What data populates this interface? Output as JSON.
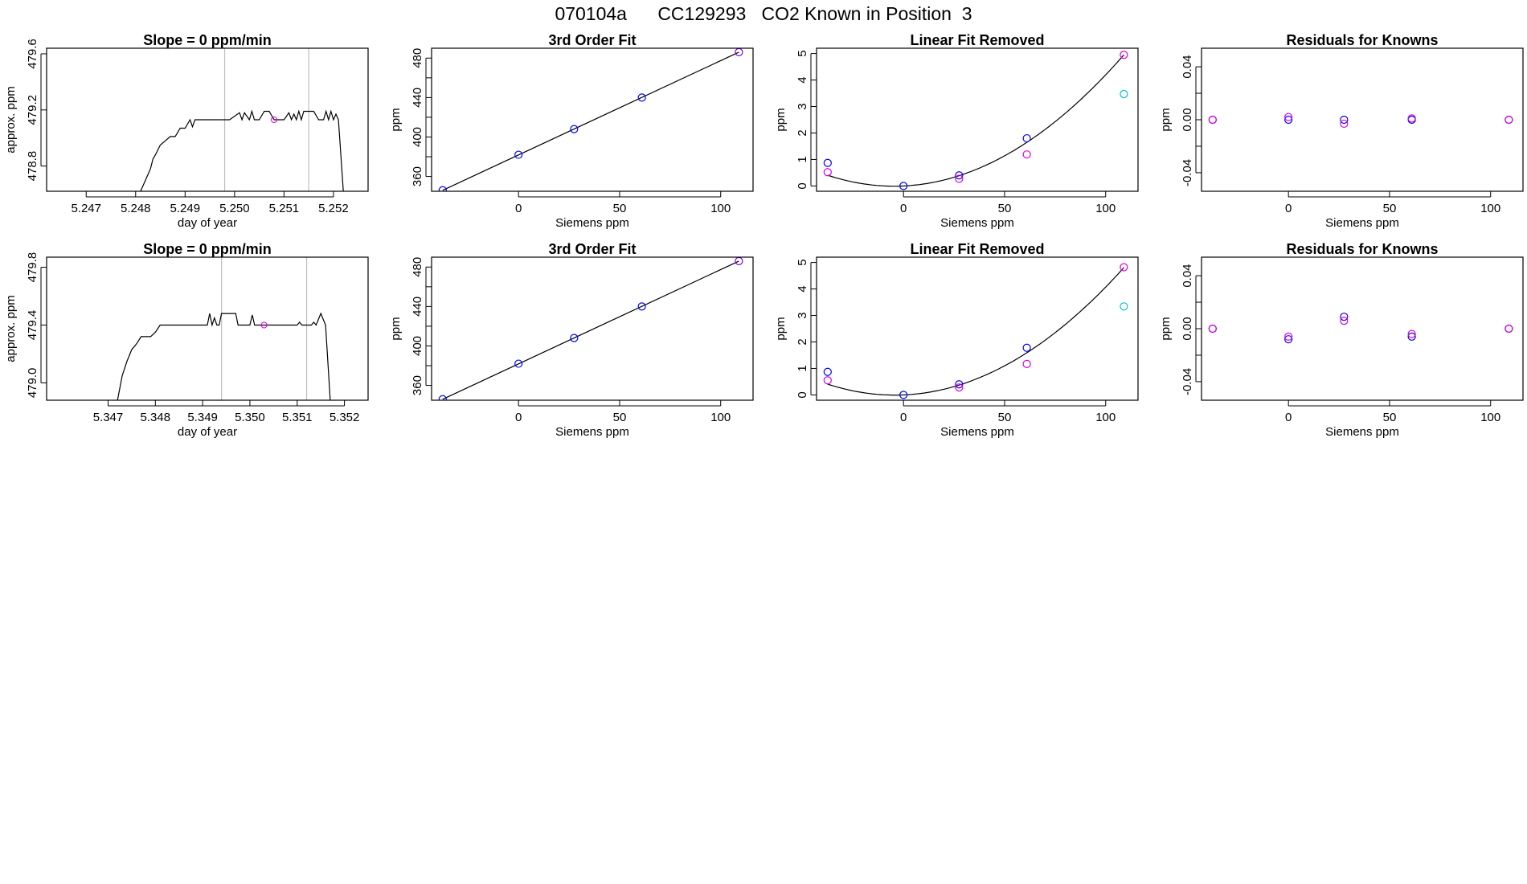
{
  "page_title": "070104a      CC129293   CO2 Known in Position  3",
  "colors": {
    "blue": "#0000FF",
    "magenta": "#DD00DD",
    "cyan": "#00BFD8",
    "purple": "#7A00DD",
    "line": "#000000",
    "vline": "#BEBEBE"
  },
  "chart_data": [
    {
      "type": "line",
      "title": "Slope =  0  ppm/min",
      "xlabel": "day of year",
      "ylabel": "approx. ppm",
      "xlim": [
        5.2462,
        5.2527
      ],
      "ylim": [
        478.62,
        479.64
      ],
      "xticks": [
        5.247,
        5.248,
        5.249,
        5.25,
        5.251,
        5.252
      ],
      "xtick_labels": [
        "5.247",
        "5.248",
        "5.249",
        "5.250",
        "5.251",
        "5.252"
      ],
      "yticks": [
        478.8,
        479.2,
        479.6
      ],
      "ytick_labels": [
        "478.8",
        "479.2",
        "479.6"
      ],
      "vlines": [
        5.2498,
        5.2515
      ],
      "series": [
        {
          "x": [
            5.2481,
            5.2482,
            5.2483,
            5.24835,
            5.2484,
            5.2485,
            5.2486,
            5.2487,
            5.2488,
            5.2489,
            5.249,
            5.2491,
            5.24915,
            5.2492,
            5.24925,
            5.2493,
            5.2495,
            5.2497,
            5.2499,
            5.2501,
            5.25015,
            5.2502,
            5.2503,
            5.25035,
            5.2504,
            5.2505,
            5.2506,
            5.2507,
            5.2508,
            5.2509,
            5.251,
            5.2511,
            5.25115,
            5.2512,
            5.25125,
            5.2513,
            5.25135,
            5.2514,
            5.2515,
            5.2516,
            5.2517,
            5.2518,
            5.25185,
            5.2519,
            5.25195,
            5.252,
            5.25205,
            5.2521,
            5.2522
          ],
          "y": [
            478.62,
            478.7,
            478.78,
            478.85,
            478.88,
            478.95,
            478.98,
            479.01,
            479.01,
            479.07,
            479.07,
            479.13,
            479.08,
            479.13,
            479.13,
            479.13,
            479.13,
            479.13,
            479.13,
            479.18,
            479.13,
            479.18,
            479.13,
            479.19,
            479.13,
            479.13,
            479.19,
            479.19,
            479.13,
            479.13,
            479.13,
            479.18,
            479.13,
            479.17,
            479.13,
            479.19,
            479.13,
            479.19,
            479.19,
            479.19,
            479.13,
            479.13,
            479.19,
            479.13,
            479.19,
            479.13,
            479.17,
            479.13,
            478.62
          ]
        }
      ],
      "point": {
        "x": 5.2508,
        "y": 479.13,
        "color": "magenta"
      }
    },
    {
      "type": "line",
      "title": "3rd Order Fit",
      "xlabel": "Siemens ppm",
      "ylabel": "ppm",
      "xlim": [
        -43,
        116
      ],
      "ylim": [
        345,
        490
      ],
      "xticks": [
        0,
        50,
        100
      ],
      "xtick_labels": [
        "0",
        "50",
        "100"
      ],
      "yticks": [
        360,
        400,
        440,
        480
      ],
      "ytick_labels": [
        "360",
        "400",
        "440",
        "480"
      ],
      "y_minor_ticks": [
        380,
        420,
        460
      ],
      "fit_line": {
        "x": [
          -37.5,
          109
        ],
        "y": [
          346,
          486
        ]
      },
      "points": [
        {
          "x": -37.5,
          "y": 346,
          "color": "blue"
        },
        {
          "x": 0,
          "y": 382,
          "color": "blue"
        },
        {
          "x": 27.5,
          "y": 408,
          "color": "blue"
        },
        {
          "x": 61,
          "y": 440,
          "color": "blue"
        },
        {
          "x": 109,
          "y": 486,
          "color": "purple"
        }
      ]
    },
    {
      "type": "scatter",
      "title": "Linear Fit Removed",
      "xlabel": "Siemens ppm",
      "ylabel": "ppm",
      "xlim": [
        -43,
        116
      ],
      "ylim": [
        -0.2,
        5.2
      ],
      "xticks": [
        0,
        50,
        100
      ],
      "xtick_labels": [
        "0",
        "50",
        "100"
      ],
      "yticks": [
        0,
        1,
        2,
        3,
        4,
        5
      ],
      "ytick_labels": [
        "0",
        "1",
        "2",
        "3",
        "4",
        "5"
      ],
      "curve": {
        "a": 0.000384,
        "b": 0.00355,
        "from": -37.5,
        "to": 109
      },
      "points": [
        {
          "x": -37.5,
          "y": 0.87,
          "color": "blue"
        },
        {
          "x": 0,
          "y": 0.0,
          "color": "blue"
        },
        {
          "x": 27.5,
          "y": 0.4,
          "color": "blue"
        },
        {
          "x": 61,
          "y": 1.8,
          "color": "blue"
        },
        {
          "x": 109,
          "y": 4.95,
          "color": "magenta"
        },
        {
          "x": -37.5,
          "y": 0.52,
          "color": "magenta"
        },
        {
          "x": 27.5,
          "y": 0.27,
          "color": "magenta"
        },
        {
          "x": 61,
          "y": 1.19,
          "color": "magenta"
        },
        {
          "x": 109,
          "y": 3.47,
          "color": "cyan"
        }
      ]
    },
    {
      "type": "scatter",
      "title": "Residuals for Knowns",
      "xlabel": "Siemens ppm",
      "ylabel": "ppm",
      "xlim": [
        -43,
        116
      ],
      "ylim": [
        -0.054,
        0.054
      ],
      "xticks": [
        0,
        50,
        100
      ],
      "xtick_labels": [
        "0",
        "50",
        "100"
      ],
      "yticks": [
        -0.04,
        0.0,
        0.04
      ],
      "ytick_labels": [
        "-0.04",
        "0.00",
        "0.04"
      ],
      "y_minor_ticks": [
        -0.02,
        0.02
      ],
      "points": [
        {
          "x": -37.5,
          "y": 0.0,
          "color": "blue"
        },
        {
          "x": -37.5,
          "y": 0.0,
          "color": "magenta"
        },
        {
          "x": 0,
          "y": 0.0,
          "color": "blue"
        },
        {
          "x": 0,
          "y": 0.002,
          "color": "magenta"
        },
        {
          "x": 27.5,
          "y": 0.0,
          "color": "blue"
        },
        {
          "x": 27.5,
          "y": -0.003,
          "color": "magenta"
        },
        {
          "x": 61,
          "y": 0.0,
          "color": "blue"
        },
        {
          "x": 61,
          "y": 0.001,
          "color": "magenta"
        },
        {
          "x": 109,
          "y": 0.0,
          "color": "blue"
        },
        {
          "x": 109,
          "y": 0.0,
          "color": "magenta"
        }
      ]
    },
    {
      "type": "line",
      "title": "Slope =  0  ppm/min",
      "xlabel": "day of year",
      "ylabel": "approx. ppm",
      "xlim": [
        5.3457,
        5.3525
      ],
      "ylim": [
        478.88,
        479.87
      ],
      "xticks": [
        5.347,
        5.348,
        5.349,
        5.35,
        5.351,
        5.352
      ],
      "xtick_labels": [
        "5.347",
        "5.348",
        "5.349",
        "5.350",
        "5.351",
        "5.352"
      ],
      "yticks": [
        479.0,
        479.4,
        479.8
      ],
      "ytick_labels": [
        "479.0",
        "479.4",
        "479.8"
      ],
      "vlines": [
        5.3494,
        5.3512
      ],
      "series": [
        {
          "x": [
            5.3472,
            5.3473,
            5.3474,
            5.3475,
            5.3476,
            5.3477,
            5.3478,
            5.3479,
            5.348,
            5.3481,
            5.3482,
            5.3483,
            5.3485,
            5.3487,
            5.3489,
            5.3491,
            5.34915,
            5.3492,
            5.34925,
            5.3493,
            5.34935,
            5.3494,
            5.3495,
            5.3496,
            5.3497,
            5.34975,
            5.3498,
            5.3499,
            5.35,
            5.35005,
            5.3501,
            5.3503,
            5.3505,
            5.3507,
            5.3509,
            5.351,
            5.35105,
            5.3511,
            5.3512,
            5.3513,
            5.35135,
            5.3514,
            5.3515,
            5.3516,
            5.3517
          ],
          "y": [
            478.88,
            479.05,
            479.15,
            479.23,
            479.27,
            479.32,
            479.32,
            479.32,
            479.35,
            479.4,
            479.4,
            479.4,
            479.4,
            479.4,
            479.4,
            479.4,
            479.48,
            479.4,
            479.45,
            479.4,
            479.4,
            479.48,
            479.48,
            479.48,
            479.48,
            479.4,
            479.4,
            479.4,
            479.4,
            479.47,
            479.4,
            479.4,
            479.4,
            479.4,
            479.4,
            479.4,
            479.42,
            479.4,
            479.4,
            479.4,
            479.42,
            479.4,
            479.48,
            479.4,
            478.88
          ]
        }
      ],
      "point": {
        "x": 5.3503,
        "y": 479.4,
        "color": "magenta"
      }
    },
    {
      "type": "line",
      "title": "3rd Order Fit",
      "xlabel": "Siemens ppm",
      "ylabel": "ppm",
      "xlim": [
        -43,
        116
      ],
      "ylim": [
        345,
        490
      ],
      "xticks": [
        0,
        50,
        100
      ],
      "xtick_labels": [
        "0",
        "50",
        "100"
      ],
      "yticks": [
        360,
        400,
        440,
        480
      ],
      "ytick_labels": [
        "360",
        "400",
        "440",
        "480"
      ],
      "y_minor_ticks": [
        380,
        420,
        460
      ],
      "fit_line": {
        "x": [
          -37.5,
          109
        ],
        "y": [
          346,
          486
        ]
      },
      "points": [
        {
          "x": -37.5,
          "y": 346,
          "color": "blue"
        },
        {
          "x": 0,
          "y": 382,
          "color": "blue"
        },
        {
          "x": 27.5,
          "y": 408,
          "color": "blue"
        },
        {
          "x": 61,
          "y": 440,
          "color": "blue"
        },
        {
          "x": 109,
          "y": 486,
          "color": "purple"
        }
      ]
    },
    {
      "type": "scatter",
      "title": "Linear Fit Removed",
      "xlabel": "Siemens ppm",
      "ylabel": "ppm",
      "xlim": [
        -43,
        116
      ],
      "ylim": [
        -0.2,
        5.2
      ],
      "xticks": [
        0,
        50,
        100
      ],
      "xtick_labels": [
        "0",
        "50",
        "100"
      ],
      "yticks": [
        0,
        1,
        2,
        3,
        4,
        5
      ],
      "ytick_labels": [
        "0",
        "1",
        "2",
        "3",
        "4",
        "5"
      ],
      "curve": {
        "a": 0.000375,
        "b": 0.0032,
        "from": -37.5,
        "to": 109
      },
      "points": [
        {
          "x": -37.5,
          "y": 0.87,
          "color": "blue"
        },
        {
          "x": 0,
          "y": 0.0,
          "color": "blue"
        },
        {
          "x": 27.5,
          "y": 0.4,
          "color": "blue"
        },
        {
          "x": 61,
          "y": 1.78,
          "color": "blue"
        },
        {
          "x": 109,
          "y": 4.82,
          "color": "magenta"
        },
        {
          "x": -37.5,
          "y": 0.55,
          "color": "magenta"
        },
        {
          "x": 27.5,
          "y": 0.28,
          "color": "magenta"
        },
        {
          "x": 61,
          "y": 1.17,
          "color": "magenta"
        },
        {
          "x": 109,
          "y": 3.34,
          "color": "cyan"
        }
      ]
    },
    {
      "type": "scatter",
      "title": "Residuals for Knowns",
      "xlabel": "Siemens ppm",
      "ylabel": "ppm",
      "xlim": [
        -43,
        116
      ],
      "ylim": [
        -0.054,
        0.054
      ],
      "xticks": [
        0,
        50,
        100
      ],
      "xtick_labels": [
        "0",
        "50",
        "100"
      ],
      "yticks": [
        -0.04,
        0.0,
        0.04
      ],
      "ytick_labels": [
        "-0.04",
        "0.00",
        "0.04"
      ],
      "y_minor_ticks": [
        -0.02,
        0.02
      ],
      "points": [
        {
          "x": -37.5,
          "y": 0.0,
          "color": "blue"
        },
        {
          "x": -37.5,
          "y": 0.0,
          "color": "magenta"
        },
        {
          "x": 0,
          "y": -0.008,
          "color": "blue"
        },
        {
          "x": 0,
          "y": -0.006,
          "color": "magenta"
        },
        {
          "x": 27.5,
          "y": 0.009,
          "color": "blue"
        },
        {
          "x": 27.5,
          "y": 0.006,
          "color": "magenta"
        },
        {
          "x": 61,
          "y": -0.006,
          "color": "blue"
        },
        {
          "x": 61,
          "y": -0.004,
          "color": "magenta"
        },
        {
          "x": 109,
          "y": 0.0,
          "color": "blue"
        },
        {
          "x": 109,
          "y": 0.0,
          "color": "magenta"
        }
      ]
    }
  ]
}
